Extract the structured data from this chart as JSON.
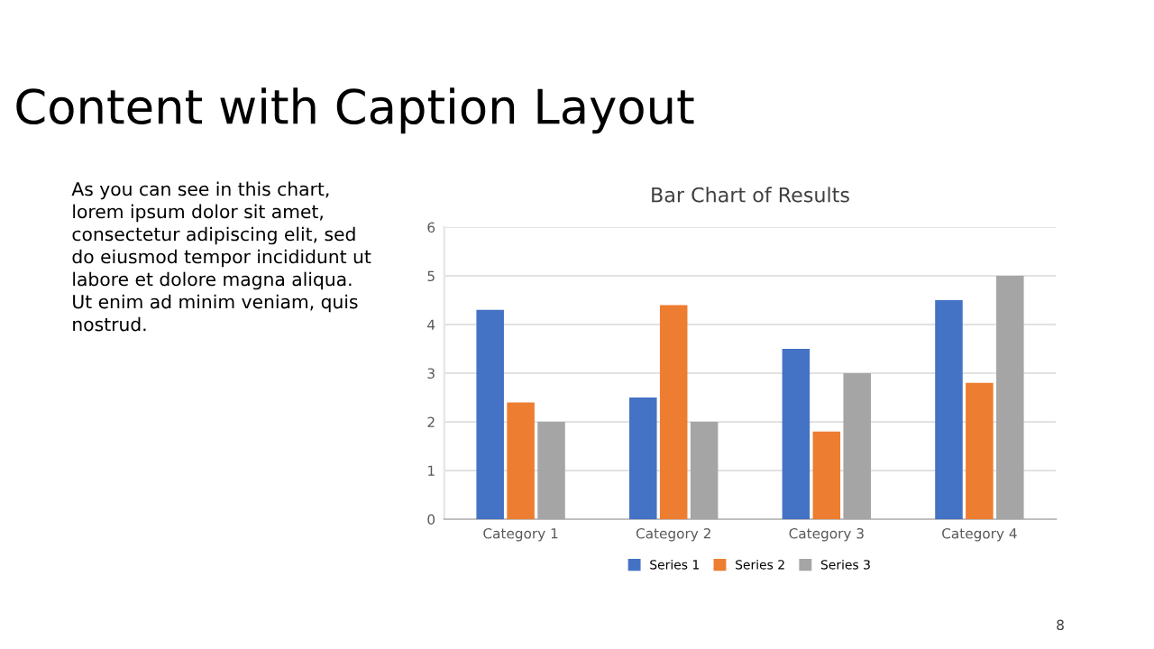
{
  "chart_data": {
    "type": "bar",
    "title": "Bar Chart of Results",
    "categories": [
      "Category 1",
      "Category 2",
      "Category 3",
      "Category 4"
    ],
    "series": [
      {
        "name": "Series 1",
        "color": "#4472c4",
        "values": [
          4.3,
          2.5,
          3.5,
          4.5
        ]
      },
      {
        "name": "Series 2",
        "color": "#ed7d31",
        "values": [
          2.4,
          4.4,
          1.8,
          2.8
        ]
      },
      {
        "name": "Series 3",
        "color": "#a5a5a5",
        "values": [
          2,
          2,
          3,
          5
        ]
      }
    ],
    "ylim": [
      0,
      6
    ],
    "yticks": [
      0,
      1,
      2,
      3,
      4,
      5,
      6
    ],
    "grid": "y",
    "legend": "bottom",
    "annotations": [
      "Content with Caption Layout",
      "As you can see in this chart,\nlorem ipsum dolor sit amet,\nconsectetur adipiscing elit, sed\ndo eiusmod tempor incididunt ut\nlabore et dolore magna aliqua.\nUt enim ad minim veniam, quis\nnostrud.",
      "8"
    ]
  }
}
